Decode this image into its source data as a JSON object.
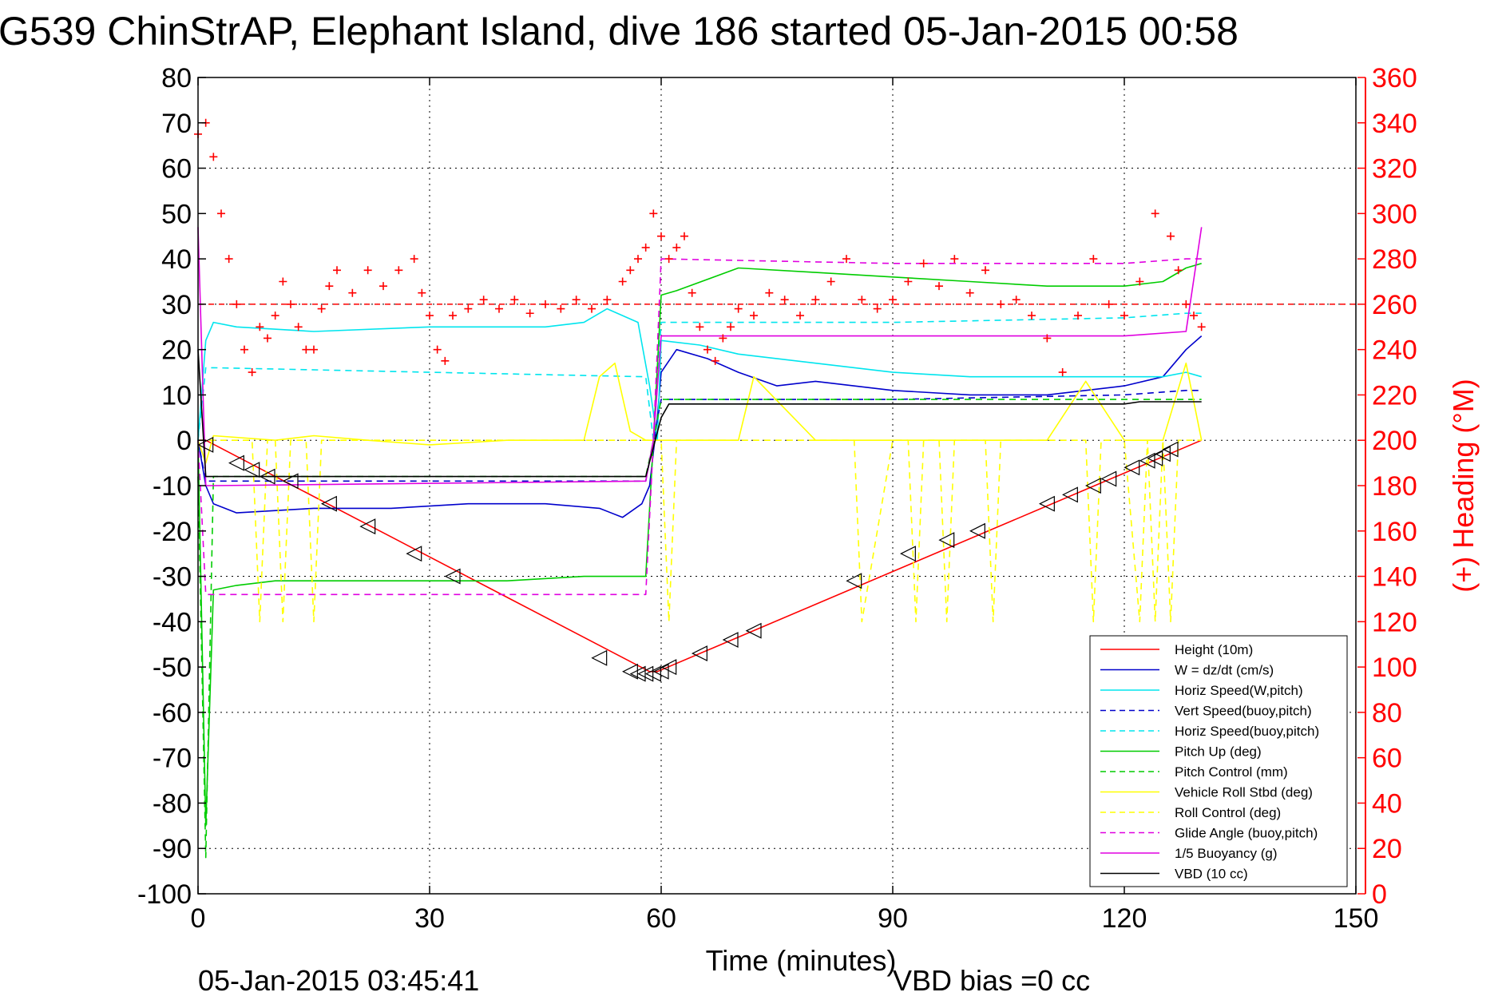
{
  "chart_data": {
    "type": "line",
    "title": "G539 ChinStrAP, Elephant Island, dive 186 started 05-Jan-2015 00:58",
    "xlabel": "Time (minutes)",
    "ylabel_right": "(+) Heading (°M)",
    "footer_left": "05-Jan-2015 03:45:41",
    "footer_center": "VBD bias =0 cc",
    "xlim": [
      0,
      150
    ],
    "ylim": [
      -100,
      80
    ],
    "ylim_right": [
      0,
      360
    ],
    "x_ticks": [
      "0",
      "30",
      "60",
      "90",
      "120",
      "150"
    ],
    "y_ticks": [
      "80",
      "70",
      "60",
      "50",
      "40",
      "30",
      "20",
      "10",
      "0",
      "-10",
      "-20",
      "-30",
      "-40",
      "-50",
      "-60",
      "-70",
      "-80",
      "-90",
      "-100"
    ],
    "y_right_ticks": [
      "360",
      "340",
      "320",
      "300",
      "280",
      "260",
      "240",
      "220",
      "200",
      "180",
      "160",
      "140",
      "120",
      "100",
      "80",
      "60",
      "40",
      "20",
      "0"
    ],
    "grid": true,
    "legend_position": "bottom-right",
    "colors": {
      "height": "#ff0000",
      "w": "#0000cc",
      "horiz_speed": "#00e5ee",
      "pitch": "#00cc00",
      "roll": "#ffff00",
      "glide": "#e000e0",
      "vbd": "#000000",
      "heading": "#ff0000"
    },
    "series": [
      {
        "name": "Height (10m)",
        "style": "solid",
        "color": "#ff0000",
        "x": [
          0,
          1,
          58.5,
          59.5,
          130
        ],
        "y": [
          0,
          0,
          -51,
          -51,
          0
        ]
      },
      {
        "name": "W = dz/dt (cm/s)",
        "style": "solid",
        "color": "#0000cc",
        "x": [
          0,
          1,
          2,
          5,
          15,
          25,
          35,
          45,
          52,
          55,
          57.5,
          58.5,
          59.5,
          60,
          62,
          66,
          70,
          75,
          80,
          90,
          100,
          110,
          120,
          125,
          128,
          130
        ],
        "y": [
          0,
          -10,
          -14,
          -16,
          -15,
          -15,
          -14,
          -14,
          -15,
          -17,
          -14,
          -10,
          5,
          15,
          20,
          18,
          15,
          12,
          13,
          11,
          10,
          10,
          12,
          14,
          20,
          23
        ]
      },
      {
        "name": "Horiz Speed(W,pitch)",
        "style": "solid",
        "color": "#00e5ee",
        "x": [
          0,
          1,
          2,
          5,
          15,
          30,
          45,
          50,
          53,
          57,
          58.5,
          59.5,
          60,
          65,
          70,
          80,
          90,
          100,
          110,
          120,
          125,
          128,
          130
        ],
        "y": [
          0,
          22,
          26,
          25,
          24,
          25,
          25,
          26,
          29,
          26,
          12,
          0,
          22,
          21,
          19,
          17,
          15,
          14,
          14,
          14,
          14,
          15,
          14
        ]
      },
      {
        "name": "Vert Speed(buoy,pitch)",
        "style": "dashed",
        "color": "#0000cc",
        "x": [
          0,
          1,
          2,
          58,
          59,
          60,
          90,
          120,
          128,
          130
        ],
        "y": [
          0,
          -9,
          -9,
          -9,
          0,
          9,
          9,
          10,
          11,
          11
        ]
      },
      {
        "name": "Horiz Speed(buoy,pitch)",
        "style": "dashed",
        "color": "#00e5ee",
        "x": [
          0,
          1,
          2,
          58,
          59,
          60,
          90,
          120,
          128,
          130
        ],
        "y": [
          0,
          16,
          16,
          14,
          0,
          26,
          26,
          27,
          28,
          28
        ]
      },
      {
        "name": "Pitch Up (deg)",
        "style": "solid",
        "color": "#00cc00",
        "x": [
          0,
          1,
          2,
          5,
          10,
          20,
          30,
          40,
          50,
          55,
          58,
          59,
          60,
          62,
          70,
          80,
          90,
          100,
          110,
          120,
          125,
          128,
          130
        ],
        "y": [
          0,
          -85,
          -33,
          -32,
          -31,
          -31,
          -31,
          -31,
          -30,
          -30,
          -30,
          0,
          32,
          33,
          38,
          37,
          36,
          35,
          34,
          34,
          35,
          38,
          39
        ]
      },
      {
        "name": "Pitch Control (mm)",
        "style": "dashed",
        "color": "#00cc00",
        "x": [
          0,
          1,
          2,
          58,
          59,
          60,
          90,
          128,
          130
        ],
        "y": [
          -8,
          -92,
          -8,
          -8,
          0,
          9,
          9,
          9,
          9
        ]
      },
      {
        "name": "Vehicle Roll Stbd (deg)",
        "style": "solid",
        "color": "#ffff00",
        "x": [
          0,
          1,
          2,
          10,
          15,
          22,
          30,
          40,
          50,
          52,
          54,
          56,
          58,
          60,
          62,
          70,
          72,
          80,
          100,
          110,
          115,
          120,
          125,
          128,
          130
        ],
        "y": [
          0,
          -5,
          1,
          0,
          1,
          0,
          -1,
          0,
          0,
          14,
          17,
          2,
          0,
          0,
          0,
          0,
          14,
          0,
          0,
          0,
          13,
          0,
          0,
          17,
          0
        ]
      },
      {
        "name": "Roll Control (deg)",
        "style": "dashed",
        "color": "#ffff00",
        "x": [
          0,
          1,
          2,
          3,
          5,
          7,
          8,
          9,
          10,
          11,
          12,
          14,
          15,
          16,
          20,
          30,
          40,
          50,
          56,
          57,
          58,
          60,
          61,
          62,
          65,
          70,
          80,
          85,
          86,
          90,
          92,
          93,
          94,
          96,
          97,
          98,
          100,
          102,
          103,
          104,
          110,
          115,
          116,
          117,
          120,
          122,
          123,
          124,
          125,
          126,
          127,
          130
        ],
        "y": [
          0,
          0,
          0,
          0,
          0,
          0,
          -40,
          0,
          0,
          -40,
          0,
          0,
          -40,
          0,
          0,
          0,
          0,
          0,
          0,
          0,
          0,
          0,
          -40,
          0,
          0,
          0,
          0,
          0,
          -40,
          0,
          0,
          -40,
          0,
          0,
          -40,
          0,
          0,
          0,
          -40,
          0,
          0,
          0,
          -40,
          0,
          0,
          -40,
          0,
          -40,
          0,
          -40,
          0,
          0
        ]
      },
      {
        "name": "Glide Angle (buoy,pitch)",
        "style": "dashed",
        "color": "#e000e0",
        "x": [
          0,
          1,
          2,
          58,
          59,
          60,
          90,
          120,
          128,
          130
        ],
        "y": [
          0,
          -34,
          -34,
          -34,
          0,
          40,
          39,
          39,
          40,
          40
        ]
      },
      {
        "name": "1/5 Buoyancy (g)",
        "style": "solid",
        "color": "#e000e0",
        "x": [
          0,
          1,
          2,
          58,
          59,
          60,
          90,
          120,
          128,
          130
        ],
        "y": [
          47,
          -10,
          -10,
          -9,
          0,
          23,
          23,
          23,
          24,
          47
        ]
      },
      {
        "name": "VBD (10 cc)",
        "style": "solid",
        "color": "#000000",
        "x": [
          0,
          1,
          2,
          58,
          60,
          61,
          90,
          120,
          122,
          130
        ],
        "y": [
          20,
          -8,
          -8,
          -8,
          5,
          8,
          8,
          8,
          8.5,
          8.5
        ]
      }
    ],
    "heading": {
      "name": "(+) Heading (°M)",
      "axis": "right",
      "marker": "+",
      "color": "#ff0000",
      "x": [
        0,
        1,
        2,
        3,
        4,
        5,
        6,
        7,
        8,
        9,
        10,
        11,
        12,
        13,
        14,
        15,
        16,
        17,
        18,
        20,
        22,
        24,
        26,
        28,
        29,
        30,
        31,
        32,
        33,
        35,
        37,
        39,
        41,
        43,
        45,
        47,
        49,
        51,
        53,
        55,
        56,
        57,
        58,
        59,
        60,
        61,
        62,
        63,
        64,
        65,
        66,
        67,
        68,
        69,
        70,
        72,
        74,
        76,
        78,
        80,
        82,
        84,
        86,
        88,
        90,
        92,
        94,
        96,
        98,
        100,
        102,
        104,
        106,
        108,
        110,
        112,
        114,
        116,
        118,
        120,
        122,
        124,
        126,
        127,
        128,
        129,
        130
      ],
      "y": [
        335,
        340,
        325,
        300,
        280,
        260,
        240,
        230,
        250,
        245,
        255,
        270,
        260,
        250,
        240,
        240,
        258,
        268,
        275,
        265,
        275,
        268,
        275,
        280,
        265,
        255,
        240,
        235,
        255,
        258,
        262,
        258,
        262,
        256,
        260,
        258,
        262,
        258,
        262,
        270,
        275,
        280,
        285,
        300,
        290,
        280,
        285,
        290,
        265,
        250,
        240,
        235,
        245,
        250,
        258,
        255,
        265,
        262,
        255,
        262,
        270,
        280,
        262,
        258,
        262,
        270,
        278,
        268,
        280,
        265,
        275,
        260,
        262,
        255,
        245,
        230,
        255,
        280,
        260,
        255,
        270,
        300,
        290,
        275,
        260,
        255,
        250
      ]
    },
    "heading_reference": {
      "value": 260,
      "style": "dashed"
    },
    "markers": {
      "symbol": "triangle-left",
      "x": [
        1,
        5,
        7,
        9,
        12,
        17,
        22,
        28,
        33,
        52,
        56,
        57,
        58,
        59,
        60,
        61,
        65,
        69,
        72,
        85,
        92,
        97,
        101,
        110,
        113,
        116,
        118,
        121,
        123,
        124,
        125,
        126
      ],
      "y": [
        -1,
        -5,
        -6.5,
        -8,
        -9,
        -14,
        -19,
        -25,
        -30,
        -48,
        -51,
        -51.5,
        -51.5,
        -51.5,
        -51,
        -50,
        -47,
        -44,
        -42,
        -31,
        -25,
        -22,
        -20,
        -14,
        -12,
        -10,
        -8.5,
        -6,
        -4.5,
        -4,
        -3,
        -2
      ]
    }
  }
}
